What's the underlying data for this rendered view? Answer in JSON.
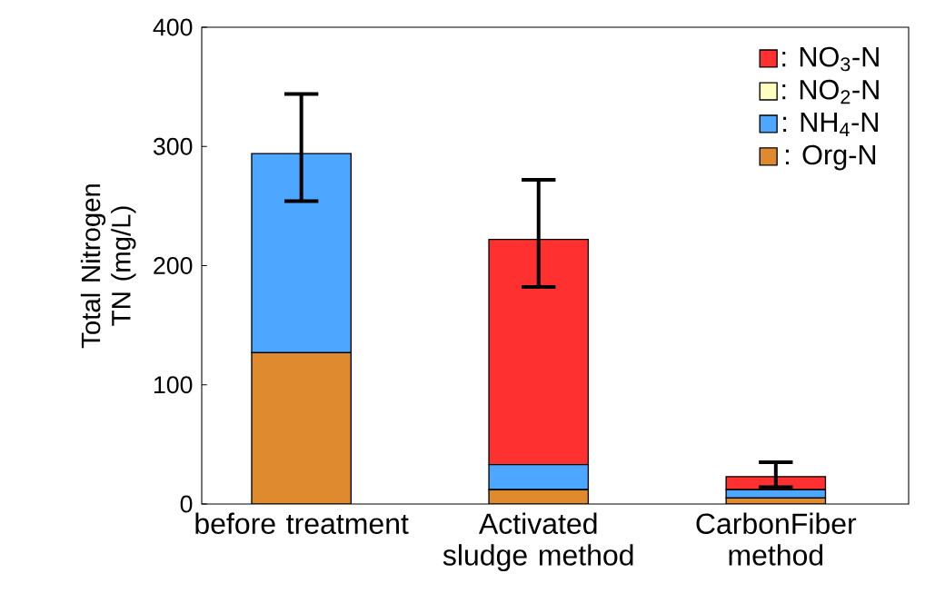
{
  "chart_data": {
    "type": "bar",
    "stacked": true,
    "ylabel": "Total Nitrogen TN (mg/L)",
    "categories": [
      "before treatment",
      "Activated sludge method",
      "CarbonFiber method"
    ],
    "series": [
      {
        "name": ": Org-N",
        "color": "#e08a30",
        "values": [
          127,
          12,
          5
        ]
      },
      {
        "name": ": NH$_{4}$-N",
        "color": "#4da6ff",
        "values": [
          167,
          21,
          7
        ]
      },
      {
        "name": ": NO$_{2}$-N",
        "color": "#ffffc0",
        "values": [
          0,
          0,
          0
        ]
      },
      {
        "name": ": NO$_{3}$-N",
        "color": "#ff3030",
        "values": [
          0,
          189,
          11
        ],
        "errors": [
          [
            254,
            344
          ],
          [
            182,
            272
          ],
          [
            14,
            35
          ]
        ]
      }
    ],
    "ylim": [
      0,
      400
    ],
    "yticks": [
      0,
      100,
      200,
      300,
      400
    ],
    "grid": false,
    "legend": "top right"
  }
}
